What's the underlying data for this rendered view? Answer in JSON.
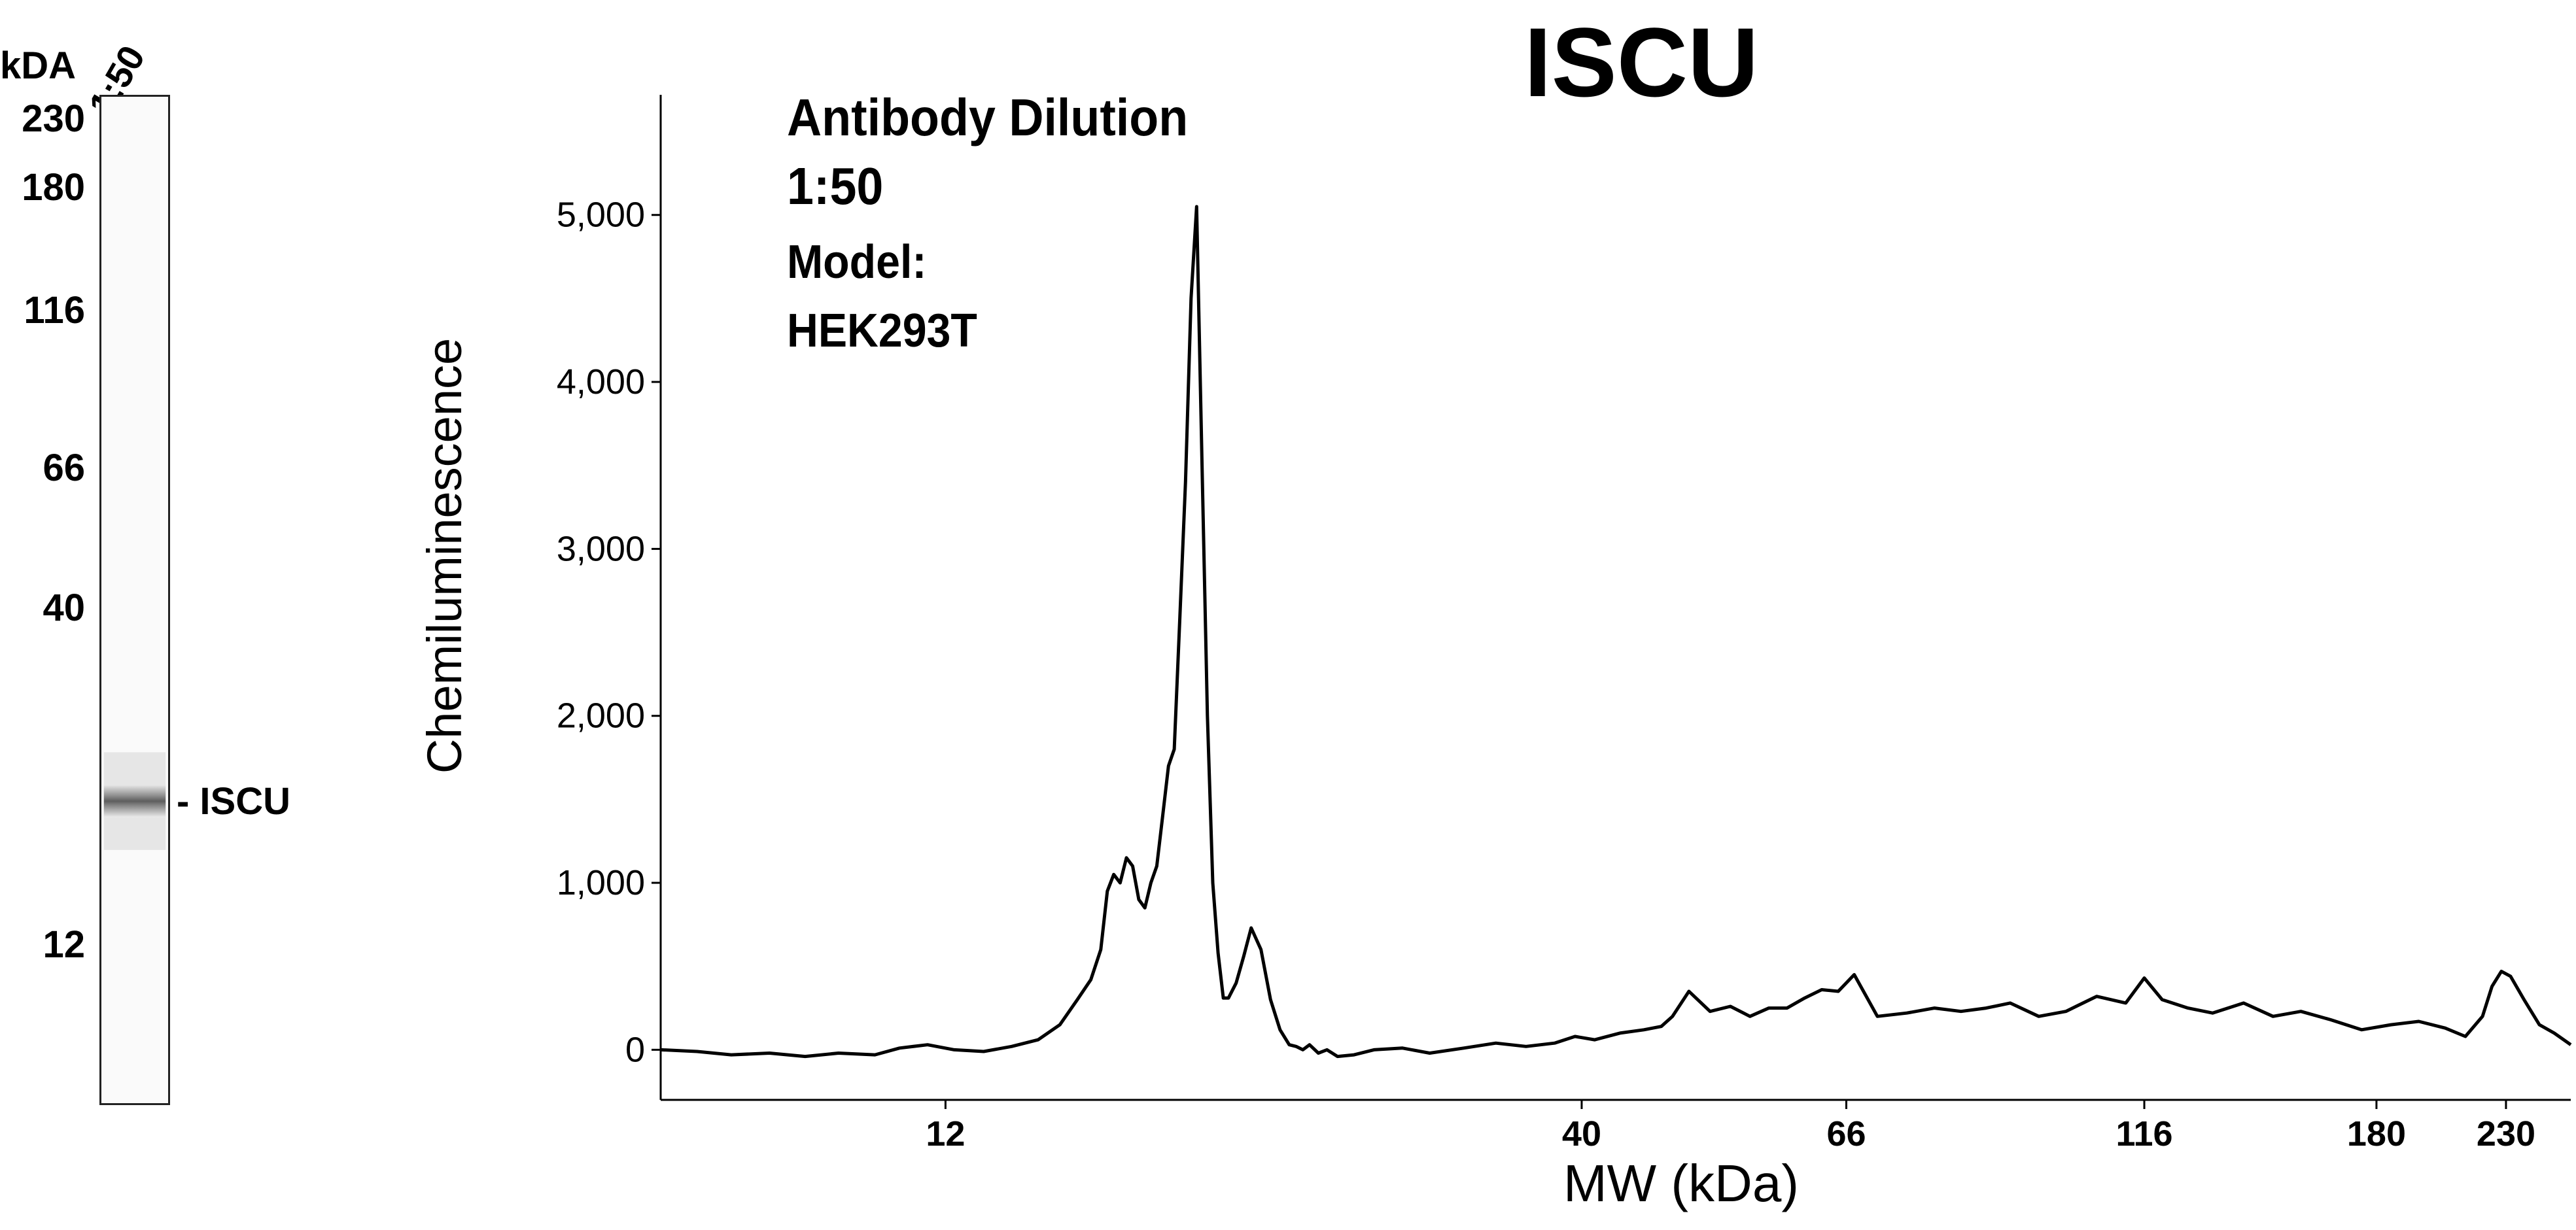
{
  "gel": {
    "unit_label": "kDA",
    "lane_label": "1:50",
    "band_label": "- ISCU",
    "mw_markers": [
      {
        "label": "230",
        "kda": 230
      },
      {
        "label": "180",
        "kda": 180
      },
      {
        "label": "116",
        "kda": 116
      },
      {
        "label": "66",
        "kda": 66
      },
      {
        "label": "40",
        "kda": 40
      },
      {
        "label": "12",
        "kda": 12
      }
    ],
    "band_kda": 20
  },
  "annotation": {
    "line1": "Antibody Dilution",
    "line2": "1:50",
    "line3": "Model:",
    "line4": "HEK293T"
  },
  "chart_data": {
    "type": "line",
    "title": "ISCU",
    "xlabel": "MW (kDa)",
    "ylabel": "Chemiluminescence",
    "x_scale": "log",
    "xlim": [
      7,
      260
    ],
    "ylim": [
      -300,
      5700
    ],
    "y_ticks": [
      0,
      1000,
      2000,
      3000,
      4000,
      5000
    ],
    "y_tick_labels": [
      "0",
      "1,000",
      "2,000",
      "3,000",
      "4,000",
      "5,000"
    ],
    "x_ticks": [
      12,
      40,
      66,
      116,
      180,
      230
    ],
    "x_tick_labels": [
      "12",
      "40",
      "66",
      "116",
      "180",
      "230"
    ],
    "grid": false,
    "series": [
      {
        "x": [
          7.0,
          7.5,
          8.0,
          8.6,
          9.2,
          9.8,
          10.5,
          11.0,
          11.6,
          12.2,
          12.9,
          13.6,
          14.3,
          14.9,
          15.4,
          15.8,
          16.1,
          16.3,
          16.5,
          16.7,
          16.9,
          17.1,
          17.3,
          17.5,
          17.7,
          17.9,
          18.1,
          18.3,
          18.5,
          18.7,
          18.9,
          19.1,
          19.3,
          19.5,
          19.7,
          19.9,
          20.1,
          20.3,
          20.5,
          20.8,
          21.1,
          21.4,
          21.8,
          22.2,
          22.6,
          23.0,
          23.3,
          23.6,
          23.9,
          24.3,
          24.7,
          25.2,
          26.0,
          27.0,
          28.5,
          30.0,
          32.0,
          34.0,
          36.0,
          38.0,
          39.5,
          41.0,
          43.0,
          45.0,
          46.5,
          47.5,
          49.0,
          51.0,
          53.0,
          55.0,
          57.0,
          59.0,
          61.0,
          63.0,
          65.0,
          67.0,
          70.0,
          74.0,
          78.0,
          82.0,
          86.0,
          90.0,
          95.0,
          100.0,
          106.0,
          112.0,
          116.0,
          120.0,
          126.0,
          132.0,
          140.0,
          148.0,
          156.0,
          165.0,
          175.0,
          185.0,
          195.0,
          205.0,
          213.0,
          220.0,
          224.0,
          228.0,
          232.0,
          238.0,
          245.0,
          252.0,
          260.0
        ],
        "y": [
          0,
          -10,
          -30,
          -20,
          -40,
          -20,
          -30,
          10,
          30,
          0,
          -10,
          20,
          60,
          150,
          300,
          420,
          600,
          950,
          1050,
          1000,
          1150,
          1100,
          900,
          850,
          1000,
          1100,
          1400,
          1700,
          1800,
          2600,
          3400,
          4500,
          5050,
          3500,
          2000,
          1000,
          580,
          310,
          310,
          400,
          560,
          730,
          600,
          300,
          120,
          30,
          20,
          0,
          30,
          -20,
          0,
          -40,
          -30,
          0,
          10,
          -20,
          10,
          40,
          20,
          40,
          80,
          60,
          100,
          120,
          140,
          200,
          350,
          230,
          260,
          200,
          250,
          250,
          310,
          360,
          350,
          450,
          200,
          220,
          250,
          230,
          250,
          280,
          200,
          230,
          320,
          280,
          430,
          300,
          250,
          220,
          280,
          200,
          230,
          180,
          120,
          150,
          170,
          130,
          80,
          200,
          380,
          470,
          440,
          300,
          150,
          100,
          30
        ]
      }
    ]
  }
}
